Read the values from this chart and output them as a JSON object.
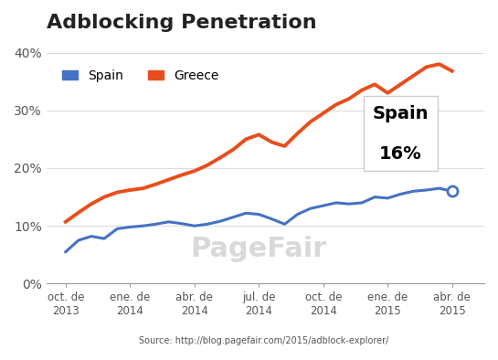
{
  "title": "Adblocking Penetration",
  "title_fontsize": 16,
  "background_color": "#ffffff",
  "ylim": [
    0,
    0.42
  ],
  "yticks": [
    0,
    0.1,
    0.2,
    0.3,
    0.4
  ],
  "ytick_labels": [
    "0%",
    "10%",
    "20%",
    "30%",
    "40%"
  ],
  "xtick_labels": [
    "oct. de\n2013",
    "ene. de\n2014",
    "abr. de\n2014",
    "jul. de\n2014",
    "oct. de\n2014",
    "ene. de\n2015",
    "abr. de\n2015"
  ],
  "legend_labels": [
    "Spain",
    "Greece"
  ],
  "legend_colors": [
    "#4472c4",
    "#e84e1b"
  ],
  "spain_color": "#4472c4",
  "greece_color": "#e84e1b",
  "source_text": "Source: http://blog.pagefair.com/2015/adblock-explorer/",
  "annotation_text": "Spain\n\n16%",
  "spain_data": [
    0.055,
    0.075,
    0.082,
    0.078,
    0.095,
    0.098,
    0.1,
    0.103,
    0.107,
    0.104,
    0.1,
    0.103,
    0.108,
    0.115,
    0.122,
    0.12,
    0.112,
    0.103,
    0.12,
    0.13,
    0.135,
    0.14,
    0.138,
    0.14,
    0.15,
    0.148,
    0.155,
    0.16,
    0.162,
    0.165,
    0.16
  ],
  "greece_data": [
    0.107,
    0.123,
    0.138,
    0.15,
    0.158,
    0.162,
    0.165,
    0.172,
    0.18,
    0.188,
    0.195,
    0.205,
    0.218,
    0.232,
    0.25,
    0.258,
    0.245,
    0.238,
    0.26,
    0.28,
    0.295,
    0.31,
    0.32,
    0.335,
    0.345,
    0.33,
    0.345,
    0.36,
    0.375,
    0.38,
    0.368
  ]
}
